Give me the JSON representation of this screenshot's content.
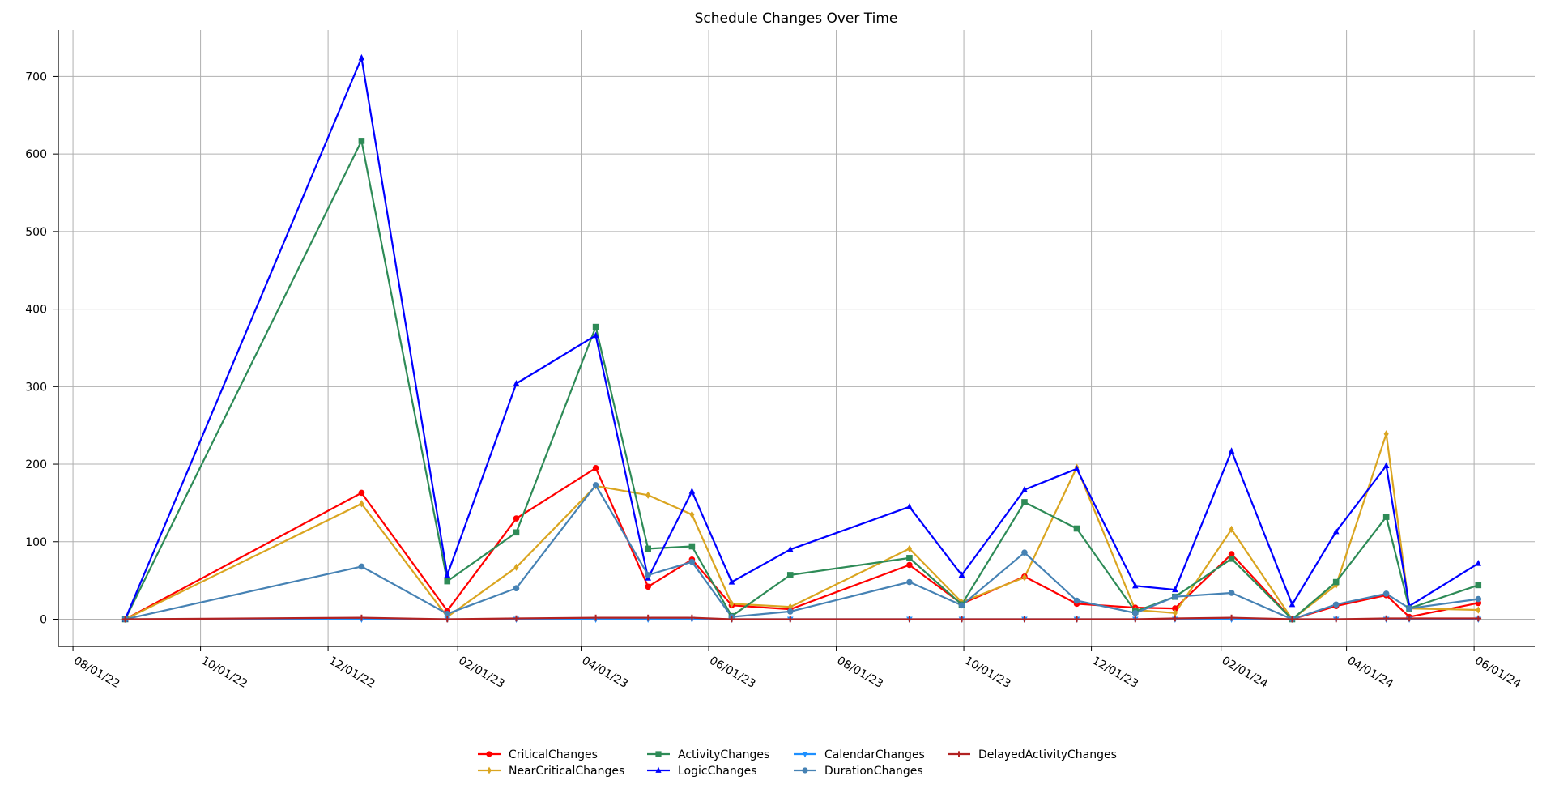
{
  "chart_data": {
    "type": "line",
    "title": "Schedule Changes Over Time",
    "xlabel": "",
    "ylabel": "",
    "x_axis_type": "date",
    "xlim": [
      "2022-07-25",
      "2024-06-30"
    ],
    "ylim": [
      -35,
      760
    ],
    "grid": true,
    "legend_placement": "bottom-center",
    "x_ticks": [
      {
        "date": "2022-08-01",
        "label": "08/01/22"
      },
      {
        "date": "2022-10-01",
        "label": "10/01/22"
      },
      {
        "date": "2022-12-01",
        "label": "12/01/22"
      },
      {
        "date": "2023-02-01",
        "label": "02/01/23"
      },
      {
        "date": "2023-04-01",
        "label": "04/01/23"
      },
      {
        "date": "2023-06-01",
        "label": "06/01/23"
      },
      {
        "date": "2023-08-01",
        "label": "08/01/23"
      },
      {
        "date": "2023-10-01",
        "label": "10/01/23"
      },
      {
        "date": "2023-12-01",
        "label": "12/01/23"
      },
      {
        "date": "2024-02-01",
        "label": "02/01/24"
      },
      {
        "date": "2024-04-01",
        "label": "04/01/24"
      },
      {
        "date": "2024-06-01",
        "label": "06/01/24"
      }
    ],
    "y_ticks": [
      0,
      100,
      200,
      300,
      400,
      500,
      600,
      700
    ],
    "x": [
      "2022-08-26",
      "2022-12-17",
      "2023-01-27",
      "2023-03-01",
      "2023-04-08",
      "2023-05-03",
      "2023-05-24",
      "2023-06-12",
      "2023-07-10",
      "2023-09-05",
      "2023-09-30",
      "2023-10-30",
      "2023-11-24",
      "2023-12-22",
      "2024-01-10",
      "2024-02-06",
      "2024-03-06",
      "2024-03-27",
      "2024-04-20",
      "2024-05-01",
      "2024-06-03"
    ],
    "series": [
      {
        "name": "CriticalChanges",
        "color": "#ff0000",
        "marker": "circle",
        "values": [
          0,
          163,
          11,
          130,
          195,
          42,
          77,
          18,
          13,
          70,
          20,
          55,
          20,
          15,
          14,
          84,
          0,
          17,
          31,
          3,
          21
        ]
      },
      {
        "name": "NearCriticalChanges",
        "color": "#daa520",
        "marker": "diamond",
        "values": [
          0,
          149,
          3,
          67,
          172,
          160,
          135,
          20,
          16,
          91,
          22,
          54,
          196,
          12,
          8,
          116,
          0,
          44,
          239,
          14,
          12
        ]
      },
      {
        "name": "ActivityChanges",
        "color": "#2e8b57",
        "marker": "square",
        "values": [
          0,
          617,
          49,
          112,
          377,
          91,
          94,
          4,
          57,
          79,
          19,
          151,
          117,
          10,
          29,
          78,
          0,
          48,
          132,
          14,
          44
        ]
      },
      {
        "name": "LogicChanges",
        "color": "#0000ff",
        "marker": "triangle-up",
        "values": [
          0,
          724,
          57,
          304,
          366,
          53,
          165,
          48,
          90,
          145,
          57,
          167,
          194,
          43,
          38,
          217,
          19,
          113,
          198,
          17,
          72
        ]
      },
      {
        "name": "CalendarChanges",
        "color": "#1e90ff",
        "marker": "triangle-down",
        "values": [
          0,
          0,
          0,
          0,
          0,
          0,
          0,
          0,
          0,
          0,
          0,
          0,
          0,
          0,
          0,
          0,
          0,
          0,
          0,
          0,
          0
        ]
      },
      {
        "name": "DurationChanges",
        "color": "#4682b4",
        "marker": "circle",
        "values": [
          0,
          68,
          7,
          40,
          173,
          57,
          74,
          3,
          10,
          48,
          18,
          86,
          24,
          8,
          29,
          34,
          0,
          19,
          33,
          14,
          26
        ]
      },
      {
        "name": "DelayedActivityChanges",
        "color": "#b22222",
        "marker": "plus",
        "values": [
          0,
          2,
          0,
          1,
          2,
          2,
          2,
          0,
          0,
          0,
          0,
          0,
          0,
          0,
          1,
          2,
          0,
          0,
          1,
          1,
          1
        ]
      }
    ]
  }
}
